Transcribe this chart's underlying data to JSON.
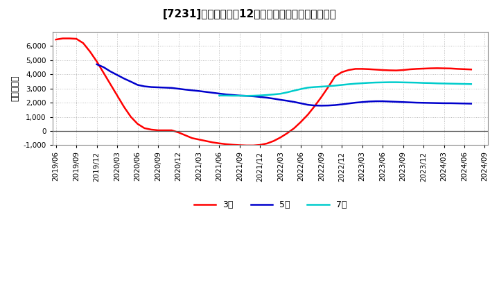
{
  "title_text": "[7231]　当期純利益12か月移動合計の平均値の推移",
  "ylabel": "（百万円）",
  "background_color": "#ffffff",
  "plot_bg_color": "#ffffff",
  "grid_color": "#bbbbbb",
  "ylim": [
    -1000,
    7000
  ],
  "yticks": [
    -1000,
    0,
    1000,
    2000,
    3000,
    4000,
    5000,
    6000
  ],
  "series": {
    "3year": {
      "color": "#ff0000",
      "label": "3年",
      "x": [
        0,
        1,
        2,
        3,
        4,
        5,
        6,
        7,
        8,
        9,
        10,
        11,
        12,
        13,
        14,
        15,
        16,
        17,
        18,
        19,
        20,
        21,
        22,
        23,
        24,
        25,
        26,
        27,
        28,
        29,
        30,
        31,
        32,
        33,
        34,
        35,
        36,
        37,
        38,
        39,
        40,
        41,
        42,
        43,
        44,
        45,
        46,
        47,
        48,
        49,
        50,
        51,
        52,
        53,
        54,
        55,
        56,
        57,
        58,
        59,
        60,
        61
      ],
      "y": [
        6450,
        6530,
        6530,
        6500,
        6200,
        5600,
        4900,
        4100,
        3300,
        2500,
        1700,
        1000,
        500,
        200,
        100,
        50,
        50,
        50,
        -100,
        -300,
        -500,
        -600,
        -700,
        -800,
        -870,
        -930,
        -970,
        -1000,
        -1020,
        -1020,
        -980,
        -880,
        -700,
        -450,
        -150,
        200,
        650,
        1150,
        1750,
        2400,
        3100,
        3850,
        4150,
        4300,
        4380,
        4380,
        4360,
        4330,
        4300,
        4280,
        4270,
        4300,
        4350,
        4380,
        4400,
        4420,
        4430,
        4420,
        4410,
        4380,
        4360,
        4340
      ]
    },
    "5year": {
      "color": "#0000cc",
      "label": "5年",
      "x": [
        6,
        7,
        8,
        9,
        10,
        11,
        12,
        13,
        14,
        15,
        16,
        17,
        18,
        19,
        20,
        21,
        22,
        23,
        24,
        25,
        26,
        27,
        28,
        29,
        30,
        31,
        32,
        33,
        34,
        35,
        36,
        37,
        38,
        39,
        40,
        41,
        42,
        43,
        44,
        45,
        46,
        47,
        48,
        49,
        50,
        51,
        52,
        53,
        54,
        55,
        56,
        57,
        58,
        59,
        60,
        61
      ],
      "y": [
        4700,
        4500,
        4200,
        3950,
        3700,
        3480,
        3250,
        3150,
        3100,
        3080,
        3060,
        3040,
        2980,
        2920,
        2870,
        2820,
        2760,
        2700,
        2640,
        2580,
        2540,
        2500,
        2480,
        2450,
        2400,
        2350,
        2280,
        2200,
        2130,
        2050,
        1950,
        1850,
        1800,
        1790,
        1800,
        1830,
        1880,
        1940,
        2000,
        2040,
        2080,
        2100,
        2100,
        2080,
        2060,
        2040,
        2020,
        2000,
        1990,
        1980,
        1970,
        1960,
        1960,
        1950,
        1940,
        1930
      ]
    },
    "7year": {
      "color": "#00cccc",
      "label": "7年",
      "x": [
        24,
        25,
        26,
        27,
        28,
        29,
        30,
        31,
        32,
        33,
        34,
        35,
        36,
        37,
        38,
        39,
        40,
        41,
        42,
        43,
        44,
        45,
        46,
        47,
        48,
        49,
        50,
        51,
        52,
        53,
        54,
        55,
        56,
        57,
        58,
        59,
        60,
        61
      ],
      "y": [
        2500,
        2500,
        2490,
        2490,
        2480,
        2490,
        2510,
        2540,
        2580,
        2630,
        2730,
        2850,
        2960,
        3060,
        3100,
        3130,
        3160,
        3200,
        3250,
        3300,
        3340,
        3370,
        3400,
        3420,
        3430,
        3440,
        3440,
        3430,
        3420,
        3410,
        3390,
        3380,
        3360,
        3350,
        3340,
        3330,
        3320,
        3310
      ]
    },
    "10year": {
      "color": "#008000",
      "x": [],
      "y": []
    }
  },
  "xtick_labels": [
    "2019/06",
    "2019/09",
    "2019/12",
    "2020/03",
    "2020/06",
    "2020/09",
    "2020/12",
    "2021/03",
    "2021/06",
    "2021/09",
    "2021/12",
    "2022/03",
    "2022/06",
    "2022/09",
    "2022/12",
    "2023/03",
    "2023/06",
    "2023/09",
    "2023/12",
    "2024/03",
    "2024/06",
    "2024/09"
  ],
  "xtick_positions": [
    0,
    3,
    6,
    9,
    12,
    15,
    18,
    21,
    24,
    27,
    30,
    33,
    36,
    39,
    42,
    45,
    48,
    51,
    54,
    57,
    60,
    63
  ]
}
